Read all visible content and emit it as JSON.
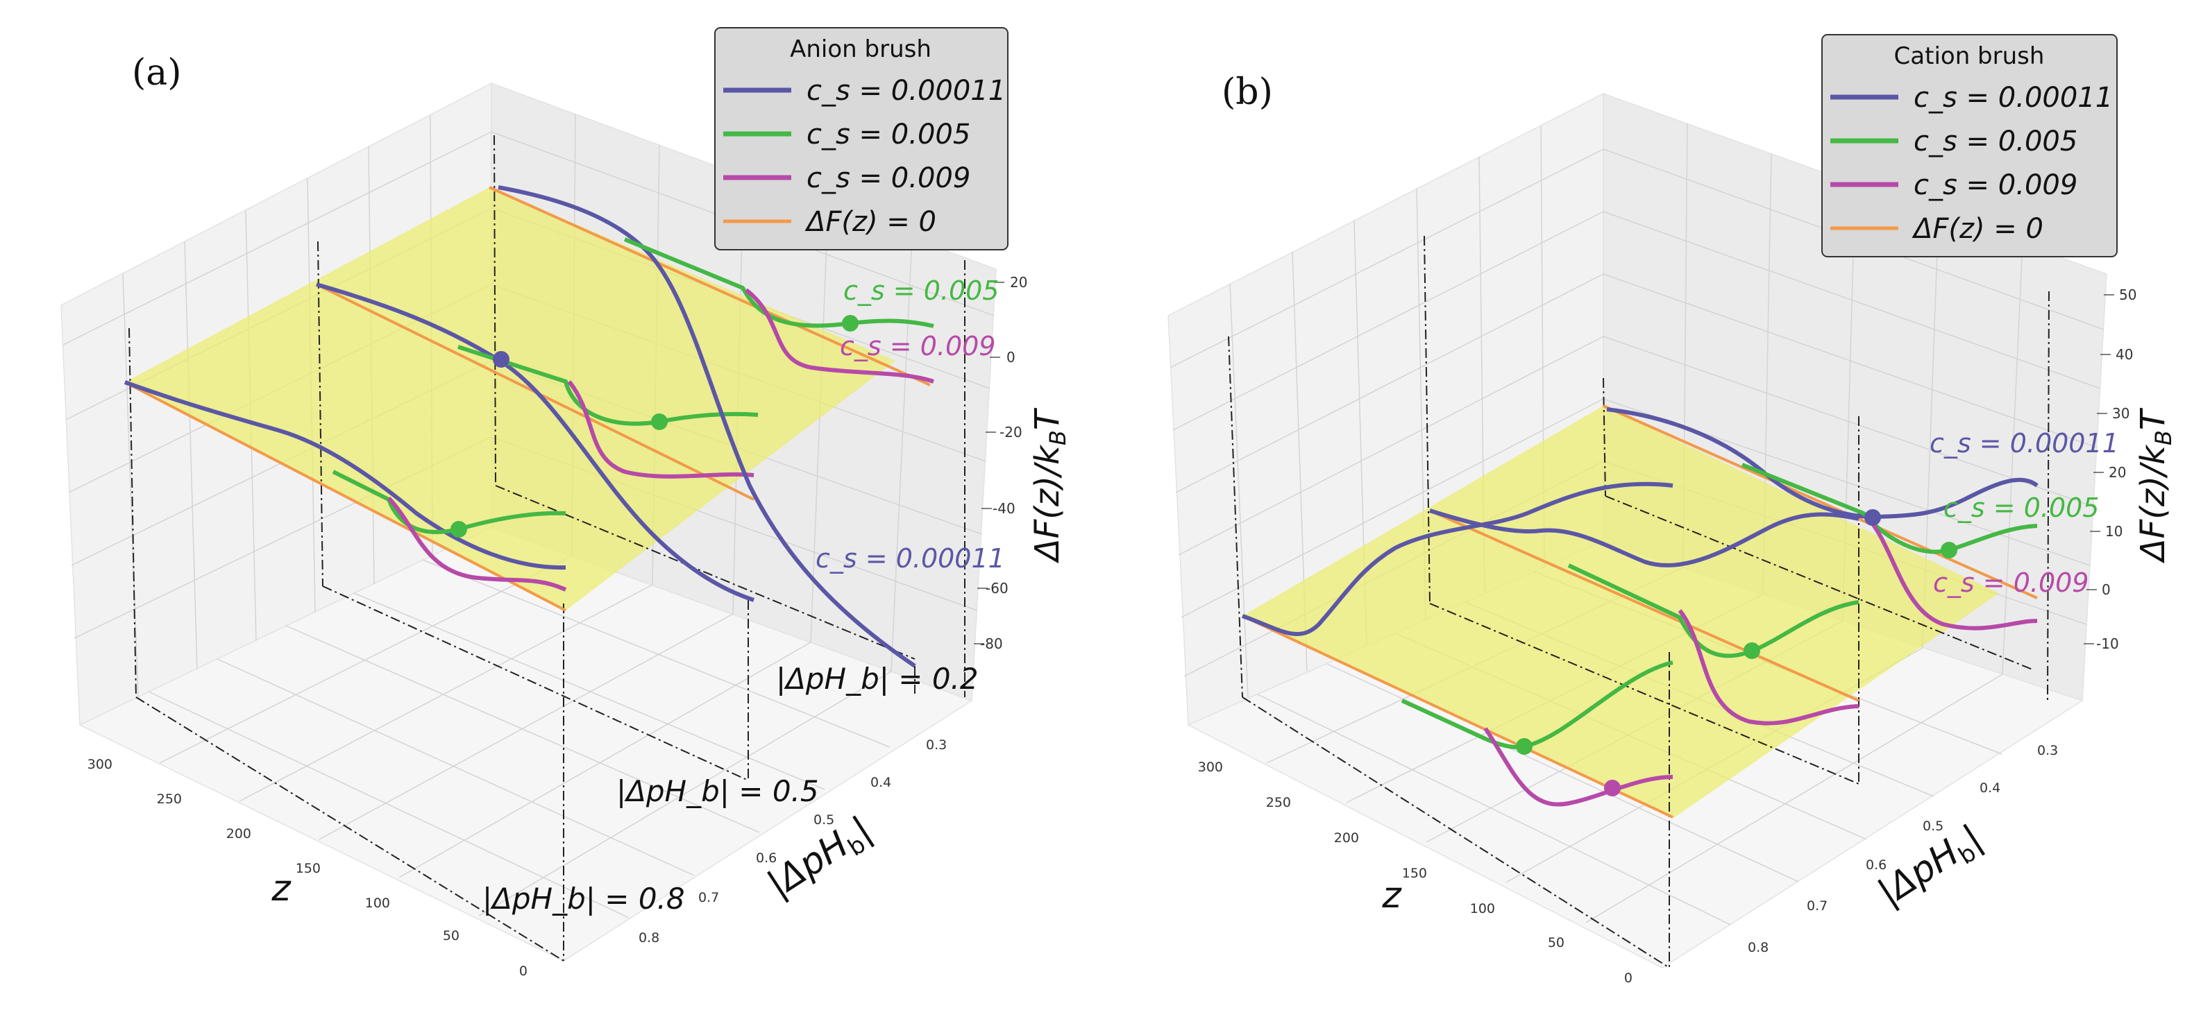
{
  "figure_title": "",
  "chart_data": [
    {
      "type": "line",
      "panel_label": "(a)",
      "legend_title": "Anion brush",
      "legend": [
        {
          "label": "c_s = 0.00011",
          "color": "#5b57a6"
        },
        {
          "label": "c_s = 0.005",
          "color": "#44b844"
        },
        {
          "label": "c_s = 0.009",
          "color": "#b64aa8"
        },
        {
          "label": "ΔF(z) = 0",
          "color": "#f29a4a"
        }
      ],
      "xlabel": "z",
      "ylabel": "|ΔpH_b|",
      "zlabel": "ΔF(z)/k_BT",
      "x_ticks": [
        "0",
        "50",
        "100",
        "150",
        "200",
        "250",
        "300"
      ],
      "y_ticks": [
        "0.3",
        "0.4",
        "0.5",
        "0.6",
        "0.7",
        "0.8"
      ],
      "z_ticks": [
        "20",
        "0",
        "-20",
        "-40",
        "-60",
        "-80"
      ],
      "slice_labels": [
        "|ΔpH_b| = 0.2",
        "|ΔpH_b| = 0.5",
        "|ΔpH_b| = 0.8"
      ],
      "curve_annotations": [
        {
          "text": "c_s = 0.005",
          "color": "#44b844"
        },
        {
          "text": "c_s = 0.009",
          "color": "#b64aa8"
        },
        {
          "text": "c_s = 0.00011",
          "color": "#5b57a6"
        }
      ],
      "zlim": [
        -90,
        25
      ],
      "grid": true,
      "legend_position": "top-right"
    },
    {
      "type": "line",
      "panel_label": "(b)",
      "legend_title": "Cation brush",
      "legend": [
        {
          "label": "c_s = 0.00011",
          "color": "#5b57a6"
        },
        {
          "label": "c_s = 0.005",
          "color": "#44b844"
        },
        {
          "label": "c_s = 0.009",
          "color": "#b64aa8"
        },
        {
          "label": "ΔF(z) = 0",
          "color": "#f29a4a"
        }
      ],
      "xlabel": "z",
      "ylabel": "|ΔpH_b|",
      "zlabel": "ΔF(z)/k_BT",
      "x_ticks": [
        "0",
        "50",
        "100",
        "150",
        "200",
        "250",
        "300"
      ],
      "y_ticks": [
        "0.3",
        "0.4",
        "0.5",
        "0.6",
        "0.7",
        "0.8"
      ],
      "z_ticks": [
        "50",
        "40",
        "30",
        "20",
        "10",
        "0",
        "-10"
      ],
      "slice_labels": [],
      "curve_annotations": [
        {
          "text": "c_s = 0.00011",
          "color": "#5b57a6"
        },
        {
          "text": "c_s = 0.005",
          "color": "#44b844"
        },
        {
          "text": "c_s = 0.009",
          "color": "#b64aa8"
        }
      ],
      "zlim": [
        -15,
        55
      ],
      "grid": true,
      "legend_position": "top-right"
    }
  ]
}
